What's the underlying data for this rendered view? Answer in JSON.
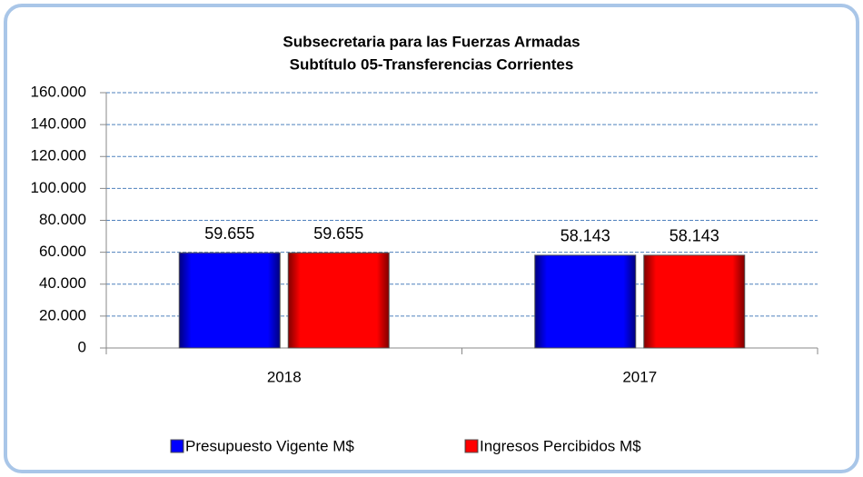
{
  "chart_data": {
    "type": "bar",
    "title": "Subsecretaria para las Fuerzas Armadas",
    "subtitle": "Subtítulo 05-Transferencias Corrientes",
    "categories": [
      "2018",
      "2017"
    ],
    "series": [
      {
        "name": "Presupuesto Vigente M$",
        "color": "#0000ff",
        "values": [
          59655,
          58143
        ],
        "value_labels": [
          "59.655",
          "58.143"
        ]
      },
      {
        "name": "Ingresos Percibidos M$",
        "color": "#ff0000",
        "values": [
          59655,
          58143
        ],
        "value_labels": [
          "59.655",
          "58.143"
        ]
      }
    ],
    "ylim": [
      0,
      160000
    ],
    "yticks": [
      0,
      {
        "value": 20000,
        "label": "20.000"
      },
      {
        "value": 40000,
        "label": "40.000"
      },
      {
        "value": 60000,
        "label": "60.000"
      },
      {
        "value": 80000,
        "label": "80.000"
      },
      {
        "value": 100000,
        "label": "100.000"
      },
      {
        "value": 120000,
        "label": "120.000"
      },
      {
        "value": 140000,
        "label": "140.000"
      },
      {
        "value": 160000,
        "label": "160.000"
      }
    ],
    "grid": true,
    "legend": "bottom"
  }
}
